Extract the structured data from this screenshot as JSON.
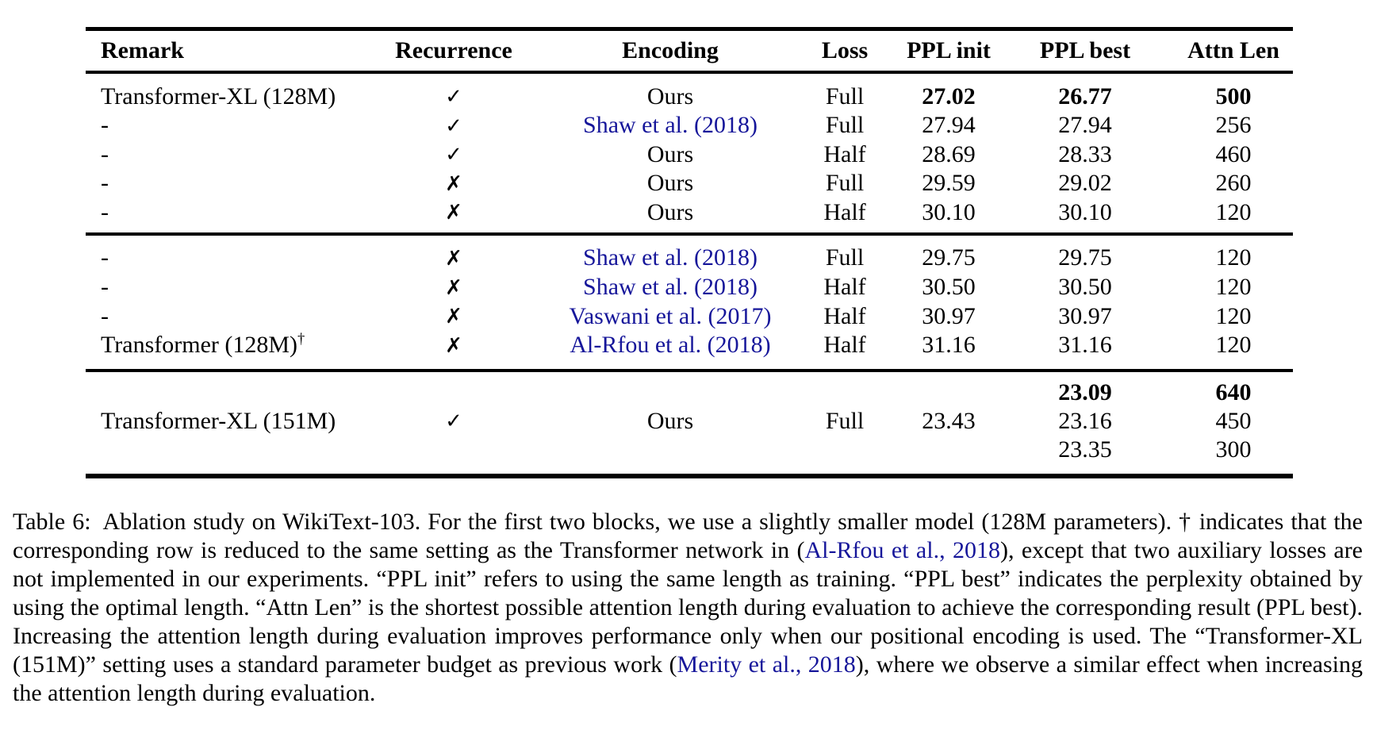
{
  "colors": {
    "background": "#ffffff",
    "text": "#000000",
    "link": "#16169a",
    "rule": "#000000"
  },
  "table": {
    "columns": [
      {
        "label": "Remark",
        "align": "left"
      },
      {
        "label": "Recurrence",
        "align": "center"
      },
      {
        "label": "Encoding",
        "align": "center"
      },
      {
        "label": "Loss",
        "align": "center"
      },
      {
        "label": "PPL init",
        "align": "center"
      },
      {
        "label": "PPL best",
        "align": "center"
      },
      {
        "label": "Attn Len",
        "align": "center"
      }
    ],
    "marks": {
      "yes": "✓",
      "no": "✗"
    },
    "blocks": [
      {
        "rows": [
          {
            "cells": [
              {
                "t": "Transformer-XL (128M)"
              },
              {
                "t": "✓",
                "mark": true
              },
              {
                "t": "Ours"
              },
              {
                "t": "Full"
              },
              {
                "t": "27.02",
                "b": true
              },
              {
                "t": "26.77",
                "b": true
              },
              {
                "t": "500",
                "b": true
              }
            ]
          },
          {
            "cells": [
              {
                "t": "-"
              },
              {
                "t": "✓",
                "mark": true
              },
              {
                "t": "Shaw et al. (2018)",
                "link": true
              },
              {
                "t": "Full"
              },
              {
                "t": "27.94"
              },
              {
                "t": "27.94"
              },
              {
                "t": "256"
              }
            ]
          },
          {
            "cells": [
              {
                "t": "-"
              },
              {
                "t": "✓",
                "mark": true
              },
              {
                "t": "Ours"
              },
              {
                "t": "Half"
              },
              {
                "t": "28.69"
              },
              {
                "t": "28.33"
              },
              {
                "t": "460"
              }
            ]
          },
          {
            "cells": [
              {
                "t": "-"
              },
              {
                "t": "✗",
                "mark": true
              },
              {
                "t": "Ours"
              },
              {
                "t": "Full"
              },
              {
                "t": "29.59"
              },
              {
                "t": "29.02"
              },
              {
                "t": "260"
              }
            ]
          },
          {
            "cells": [
              {
                "t": "-"
              },
              {
                "t": "✗",
                "mark": true
              },
              {
                "t": "Ours"
              },
              {
                "t": "Half"
              },
              {
                "t": "30.10"
              },
              {
                "t": "30.10"
              },
              {
                "t": "120"
              }
            ]
          }
        ]
      },
      {
        "rows": [
          {
            "cells": [
              {
                "t": "-"
              },
              {
                "t": "✗",
                "mark": true
              },
              {
                "t": "Shaw et al. (2018)",
                "link": true
              },
              {
                "t": "Full"
              },
              {
                "t": "29.75"
              },
              {
                "t": "29.75"
              },
              {
                "t": "120"
              }
            ]
          },
          {
            "cells": [
              {
                "t": "-"
              },
              {
                "t": "✗",
                "mark": true
              },
              {
                "t": "Shaw et al. (2018)",
                "link": true
              },
              {
                "t": "Half"
              },
              {
                "t": "30.50"
              },
              {
                "t": "30.50"
              },
              {
                "t": "120"
              }
            ]
          },
          {
            "cells": [
              {
                "t": "-"
              },
              {
                "t": "✗",
                "mark": true
              },
              {
                "t": "Vaswani et al. (2017)",
                "link": true
              },
              {
                "t": "Half"
              },
              {
                "t": "30.97"
              },
              {
                "t": "30.97"
              },
              {
                "t": "120"
              }
            ]
          },
          {
            "cells": [
              {
                "t": "Transformer (128M)",
                "sup": "†"
              },
              {
                "t": "✗",
                "mark": true
              },
              {
                "t": "Al-Rfou et al. (2018)",
                "link": true
              },
              {
                "t": "Half"
              },
              {
                "t": "31.16"
              },
              {
                "t": "31.16"
              },
              {
                "t": "120"
              }
            ]
          }
        ]
      },
      {
        "rows": [
          {
            "multirow": true,
            "cells": [
              {
                "t": "Transformer-XL (151M)"
              },
              {
                "t": "✓",
                "mark": true
              },
              {
                "t": "Ours"
              },
              {
                "t": "Full"
              },
              {
                "t": "23.43"
              },
              {
                "multi": [
                  {
                    "t": "23.09",
                    "b": true
                  },
                  {
                    "t": "23.16"
                  },
                  {
                    "t": "23.35"
                  }
                ]
              },
              {
                "multi": [
                  {
                    "t": "640",
                    "b": true
                  },
                  {
                    "t": "450"
                  },
                  {
                    "t": "300"
                  }
                ]
              }
            ]
          }
        ]
      }
    ]
  },
  "caption": {
    "segments": [
      {
        "t": "Table 6: Ablation study on WikiText-103. For the first two blocks, we use a slightly smaller model (128M parameters). † indicates that the corresponding row is reduced to the same setting as the Transformer network in ("
      },
      {
        "t": "Al-Rfou et al., 2018",
        "link": true
      },
      {
        "t": "), except that two auxiliary losses are not implemented in our experiments. “PPL init” refers to using the same length as training. “PPL best” indicates the perplexity obtained by using the optimal length. “Attn Len” is the shortest possible attention length during evaluation to achieve the corresponding result (PPL best). Increasing the attention length during evaluation improves performance only when our positional encoding is used. The “Transformer-XL (151M)” setting uses a standard parameter budget as previous work ("
      },
      {
        "t": "Merity et al., 2018",
        "link": true
      },
      {
        "t": "), where we observe a similar effect when increasing the attention length during evaluation."
      }
    ]
  }
}
